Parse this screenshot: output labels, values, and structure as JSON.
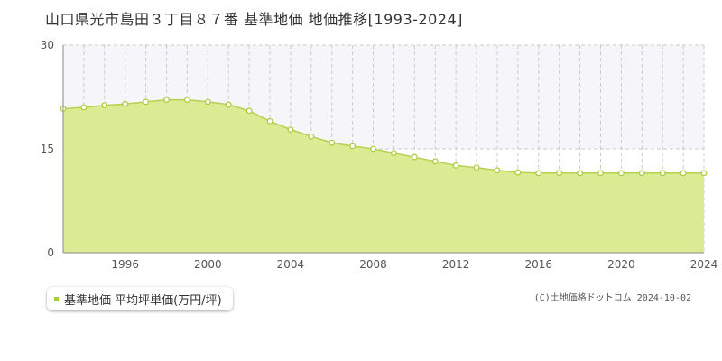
{
  "title": "山口県光市島田３丁目８７番 基準地価 地価推移[1993-2024]",
  "legend_label": "基準地価 平均坪単価(万円/坪)",
  "credit": "(C)土地価格ドットコム 2024-10-02",
  "colors": {
    "fill": "#dbeb94",
    "line": "#b5d14f",
    "marker": "#a8cc3c",
    "grid": "#cccccc",
    "axis": "#888888"
  },
  "chart_data": {
    "type": "area",
    "title": "山口県光市島田３丁目８７番 基準地価 地価推移[1993-2024]",
    "xlabel": "",
    "ylabel": "",
    "ylim": [
      0,
      30
    ],
    "yticks": [
      0,
      15,
      30
    ],
    "xlim": [
      1993,
      2024
    ],
    "xticks": [
      1996,
      2000,
      2004,
      2008,
      2012,
      2016,
      2020,
      2024
    ],
    "grid": true,
    "legend": "bottom-left",
    "series": [
      {
        "name": "基準地価 平均坪単価(万円/坪)",
        "x": [
          1993,
          1994,
          1995,
          1996,
          1997,
          1998,
          1999,
          2000,
          2001,
          2002,
          2003,
          2004,
          2005,
          2006,
          2007,
          2008,
          2009,
          2010,
          2011,
          2012,
          2013,
          2014,
          2015,
          2016,
          2017,
          2018,
          2019,
          2020,
          2021,
          2022,
          2023,
          2024
        ],
        "y": [
          20.8,
          21.0,
          21.3,
          21.5,
          21.8,
          22.1,
          22.1,
          21.8,
          21.4,
          20.5,
          19.0,
          17.8,
          16.8,
          15.9,
          15.4,
          15.0,
          14.4,
          13.8,
          13.2,
          12.6,
          12.3,
          11.9,
          11.6,
          11.5,
          11.5,
          11.5,
          11.5,
          11.5,
          11.5,
          11.5,
          11.5,
          11.5
        ]
      }
    ]
  }
}
